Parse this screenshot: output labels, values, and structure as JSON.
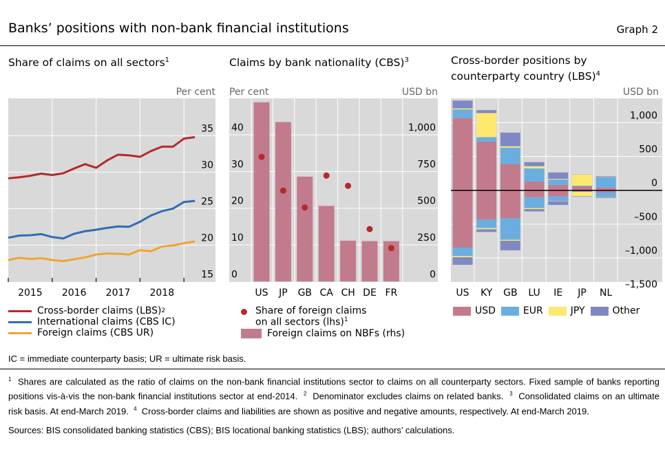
{
  "header": {
    "title": "Banks’ positions with non-bank financial institutions",
    "graph": "Graph 2"
  },
  "panels": [
    {
      "title": "Share of claims on all sectors",
      "fn": "1"
    },
    {
      "title": "Claims by bank nationality (CBS)",
      "fn": "3"
    },
    {
      "title1": "Cross-border positions by",
      "title2": "counterparty country (LBS)",
      "fn": "4"
    }
  ],
  "legend_left": [
    {
      "label": "Cross-border claims (LBS)",
      "fn": "2",
      "color": "#b5292a"
    },
    {
      "label": "International claims (CBS IC)",
      "color": "#2e6db4"
    },
    {
      "label": "Foreign claims (CBS UR)",
      "color": "#f0a431"
    }
  ],
  "legend_mid": {
    "dot1": "Share of foreign claims",
    "dot2": "on all sectors (lhs)",
    "dot_fn": "1",
    "bar": "Foreign claims on NBFs (rhs)"
  },
  "legend_right": [
    {
      "label": "USD",
      "color": "#c27b8c"
    },
    {
      "label": "EUR",
      "color": "#6aaee0"
    },
    {
      "label": "JPY",
      "color": "#fde870"
    },
    {
      "label": "Other",
      "color": "#8088c4"
    }
  ],
  "abbrev": "IC = immediate counterparty basis; UR = ultimate risk basis.",
  "footnotes": {
    "n1": "Shares are calculated as the ratio of claims on the non-bank financial institutions sector to claims on all counterparty sectors. Fixed sample of banks reporting positions vis-à-vis the non-bank financial institutions sector at end-2014.",
    "n2": "Denominator excludes claims on related banks.",
    "n3": "Consolidated claims on an ultimate risk basis. At end-March 2019.",
    "n4": "Cross-border claims and liabilities are shown as positive and negative amounts, respectively. At end-March 2019."
  },
  "sources": "Sources: BIS consolidated banking statistics (CBS); BIS locational banking statistics (LBS); authors’ calculations.",
  "chart_data": [
    {
      "type": "line",
      "title": "Share of claims on all sectors",
      "ylabel": "Per cent",
      "ylim": [
        15,
        35
      ],
      "yticks": [
        "15",
        "20",
        "25",
        "30",
        "35"
      ],
      "xticks": [
        "2015",
        "2016",
        "2017",
        "2018"
      ],
      "x": "quarterly, 2015 Q1 – 2019 Q1",
      "series": [
        {
          "name": "Cross-border claims (LBS)",
          "color": "#b5292a",
          "values": [
            29.15,
            29.3,
            29.5,
            29.8,
            29.6,
            29.85,
            30.5,
            31.1,
            30.6,
            31.6,
            32.4,
            32.3,
            32.1,
            32.9,
            33.5,
            33.5,
            34.6,
            34.8
          ]
        },
        {
          "name": "International claims (CBS IC)",
          "color": "#2e6db4",
          "values": [
            21.0,
            21.3,
            21.35,
            21.5,
            21.1,
            20.9,
            21.55,
            21.9,
            22.1,
            22.35,
            22.55,
            22.5,
            23.2,
            24.05,
            24.65,
            25.0,
            25.9,
            26.05
          ]
        },
        {
          "name": "Foreign claims (CBS UR)",
          "color": "#f0a431",
          "values": [
            17.95,
            18.25,
            18.1,
            18.2,
            17.95,
            17.8,
            18.05,
            18.3,
            18.7,
            18.85,
            18.8,
            18.7,
            19.3,
            19.15,
            19.8,
            19.95,
            20.25,
            20.5
          ]
        }
      ]
    },
    {
      "type": "bar",
      "title": "Claims by bank nationality (CBS)",
      "ylabel_left": "Per cent",
      "ylabel_right": "USD bn",
      "categories": [
        "US",
        "JP",
        "GB",
        "CA",
        "CH",
        "DE",
        "FR"
      ],
      "yticks_left": [
        "0",
        "10",
        "20",
        "30",
        "40"
      ],
      "yticks_right": [
        "0",
        "250",
        "500",
        "750",
        "1,000"
      ],
      "ylim_left": [
        0,
        50
      ],
      "ylim_right": [
        0,
        1250
      ],
      "bars": {
        "name": "Foreign claims on NBFs (rhs)",
        "values": [
          1225,
          1090,
          717,
          517,
          279,
          276,
          276
        ]
      },
      "dots": {
        "name": "Share of foreign claims on all sectors (lhs)",
        "values": [
          34.0,
          24.8,
          20.2,
          28.9,
          26.1,
          14.3,
          9.1
        ]
      }
    },
    {
      "type": "bar",
      "stacked": true,
      "title": "Cross-border positions by counterparty country (LBS)",
      "ylabel": "USD bn",
      "ylim": [
        -1500,
        1300
      ],
      "yticks": [
        "1,000",
        "500",
        "0",
        "–500",
        "–1,000",
        "–1,500"
      ],
      "categories": [
        "US",
        "KY",
        "GB",
        "LU",
        "IE",
        "JP",
        "NL"
      ],
      "series": [
        {
          "name": "USD",
          "pos": [
            1068,
            719,
            390,
            129,
            78,
            58,
            37
          ],
          "neg": [
            -847,
            -434,
            -414,
            -102,
            -92,
            -17,
            -34
          ]
        },
        {
          "name": "EUR",
          "pos": [
            129,
            67,
            241,
            196,
            81,
            10,
            156
          ],
          "neg": [
            -126,
            -125,
            -318,
            -162,
            -67,
            -7,
            -68
          ]
        },
        {
          "name": "JPY",
          "pos": [
            15,
            356,
            20,
            31,
            10,
            166,
            3
          ],
          "neg": [
            -17,
            -17,
            -14,
            -14,
            -4,
            -64,
            -2
          ]
        },
        {
          "name": "Other",
          "pos": [
            115,
            44,
            203,
            61,
            95,
            3,
            11
          ],
          "neg": [
            -112,
            -41,
            -142,
            -34,
            -54,
            -7,
            -8
          ]
        }
      ]
    }
  ]
}
